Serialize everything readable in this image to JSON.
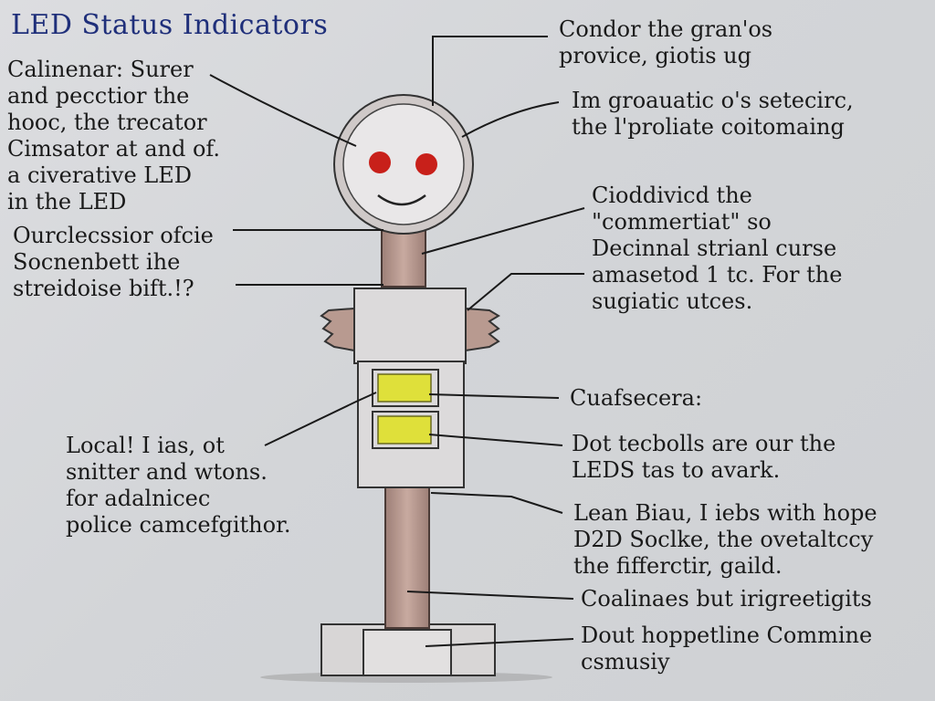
{
  "title": "LED Status Indicators",
  "notes": {
    "tl": [
      "Calinenar: Surer",
      "and pecctior the",
      "hooc, the trecator",
      "Cimsator at and of.",
      "a civerative LED",
      "in the LED"
    ],
    "ml": [
      "Ourclecssior ofcie",
      "Socnenbett ihe",
      "streidoise bift.!?"
    ],
    "bl": [
      "Local! I ias, ot",
      "snitter and wtons.",
      "for adalnicec",
      "police camcefgithor."
    ],
    "r1": [
      "Condor the gran'os",
      "provice, giotis ug"
    ],
    "r2": [
      "Im groauatic o's setecirc,",
      "the l'proliate coitomaing"
    ],
    "r3": [
      "Cioddivicd the",
      "\"commertiat\" so",
      "Decinnal strianl curse",
      "amasetod 1 tc. For the",
      "sugiatic utces."
    ],
    "r4": [
      "Cuafsecera:"
    ],
    "r5": [
      "Dot tecbolls are our the",
      "LEDS tas to avark."
    ],
    "r6": [
      "Lean Biau, I iebs with hope",
      "D2D Soclke, the ovetaltccy",
      "the fifferctir, gaild."
    ],
    "r7": [
      "Coalinaes but irigreetigits"
    ],
    "r8": [
      "Dout hoppetline Commine",
      "csmusiy"
    ]
  },
  "colors": {
    "title": "#1f2f7a",
    "led_red": "#c8201a",
    "led_yellow": "#dfe03a",
    "pole": "#b89a90",
    "ink": "#1a1a1a"
  }
}
